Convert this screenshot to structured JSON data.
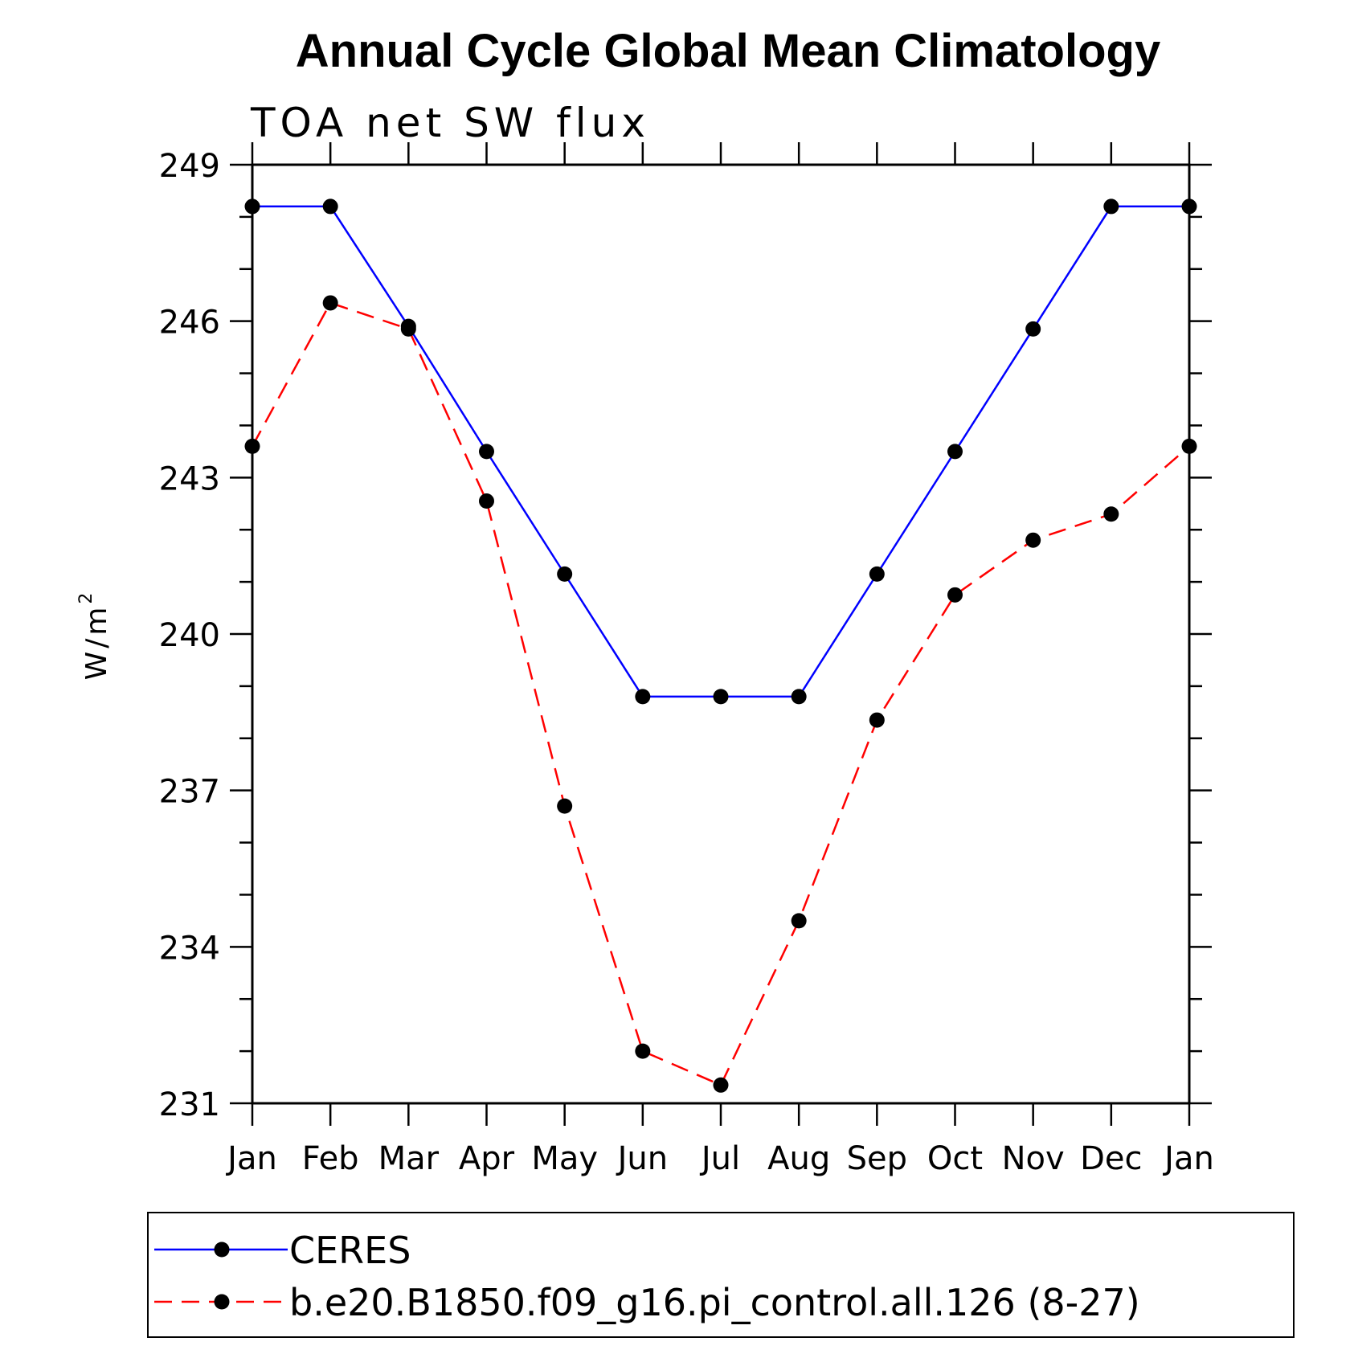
{
  "chart_data": {
    "type": "line",
    "title": "Annual Cycle Global Mean Climatology",
    "subtitle": "TOA net SW flux",
    "ylabel": "W/m",
    "ylabel_superscript": "2",
    "xlabel": "",
    "categories": [
      "Jan",
      "Feb",
      "Mar",
      "Apr",
      "May",
      "Jun",
      "Jul",
      "Aug",
      "Sep",
      "Oct",
      "Nov",
      "Dec",
      "Jan"
    ],
    "ylim": [
      231,
      249
    ],
    "yticks": [
      231,
      234,
      237,
      240,
      243,
      246,
      249
    ],
    "yminor_step": 1,
    "grid": false,
    "legend_position": "bottom",
    "series": [
      {
        "name": "CERES",
        "color": "#0000ff",
        "dash": "solid",
        "marker": "filled-circle",
        "values": [
          248.2,
          248.2,
          245.9,
          243.5,
          241.15,
          238.8,
          238.8,
          238.8,
          241.15,
          243.5,
          245.85,
          248.2,
          248.2
        ]
      },
      {
        "name": "b.e20.B1850.f09_g16.pi_control.all.126 (8-27)",
        "color": "#ff0000",
        "dash": "dashed",
        "marker": "filled-circle",
        "values": [
          243.6,
          246.35,
          245.85,
          242.55,
          236.7,
          232.0,
          231.35,
          234.5,
          238.35,
          240.75,
          241.8,
          242.3,
          243.6
        ]
      }
    ]
  }
}
